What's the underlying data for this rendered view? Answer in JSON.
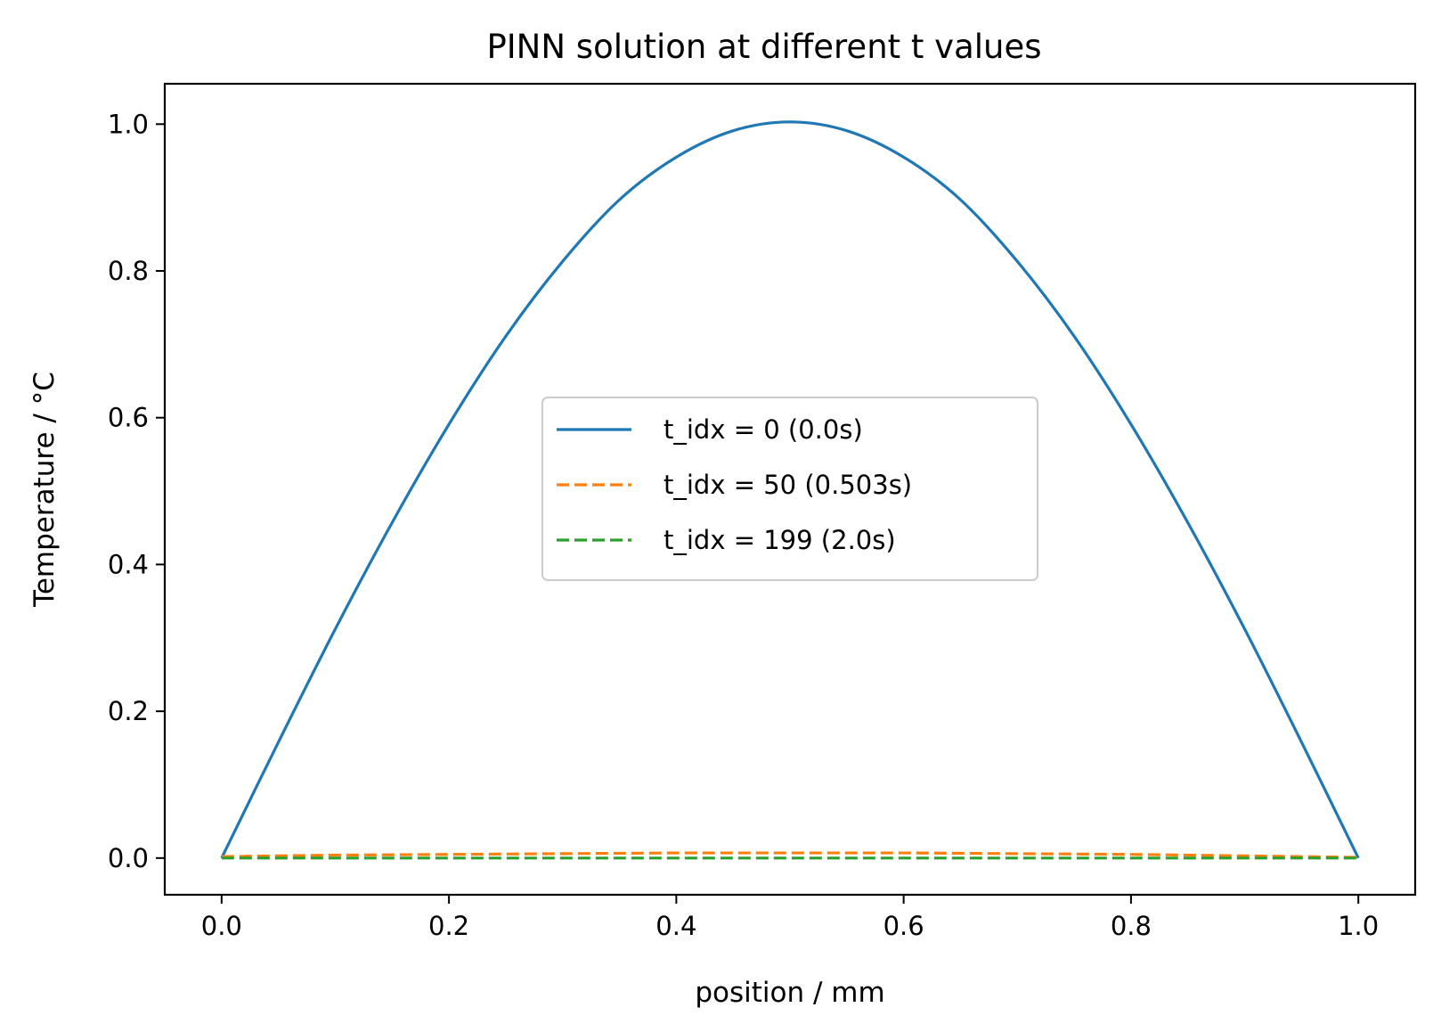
{
  "chart_data": {
    "type": "line",
    "title": "PINN solution at different t values",
    "xlabel": "position / mm",
    "ylabel": "Temperature / °C",
    "xlim": [
      -0.05,
      1.05
    ],
    "ylim": [
      -0.05,
      1.055
    ],
    "xticks": [
      0.0,
      0.2,
      0.4,
      0.6,
      0.8,
      1.0
    ],
    "xtick_labels": [
      "0.0",
      "0.2",
      "0.4",
      "0.6",
      "0.8",
      "1.0"
    ],
    "yticks": [
      0.0,
      0.2,
      0.4,
      0.6,
      0.8,
      1.0
    ],
    "ytick_labels": [
      "0.0",
      "0.2",
      "0.4",
      "0.6",
      "0.8",
      "1.0"
    ],
    "grid": false,
    "legend_position": "center",
    "series": [
      {
        "name": "t_idx = 0 (0.0s)",
        "color": "#1f77b4",
        "dash": "solid",
        "x": [
          0.0,
          0.05,
          0.1,
          0.15,
          0.2,
          0.25,
          0.3,
          0.35,
          0.4,
          0.45,
          0.5,
          0.55,
          0.6,
          0.65,
          0.7,
          0.75,
          0.8,
          0.85,
          0.9,
          0.95,
          1.0
        ],
        "y": [
          0.0,
          0.158,
          0.312,
          0.457,
          0.591,
          0.711,
          0.813,
          0.897,
          0.955,
          0.991,
          1.003,
          0.991,
          0.955,
          0.897,
          0.813,
          0.711,
          0.591,
          0.457,
          0.312,
          0.158,
          0.0
        ]
      },
      {
        "name": "t_idx = 50 (0.503s)",
        "color": "#ff7f0e",
        "dash": "dashed",
        "x": [
          0.0,
          0.1,
          0.2,
          0.3,
          0.4,
          0.5,
          0.6,
          0.7,
          0.8,
          0.9,
          1.0
        ],
        "y": [
          0.002,
          0.004,
          0.005,
          0.006,
          0.007,
          0.007,
          0.007,
          0.006,
          0.005,
          0.003,
          0.001
        ]
      },
      {
        "name": "t_idx = 199 (2.0s)",
        "color": "#2ca02c",
        "dash": "dashed",
        "x": [
          0.0,
          0.1,
          0.2,
          0.3,
          0.4,
          0.5,
          0.6,
          0.7,
          0.8,
          0.9,
          1.0
        ],
        "y": [
          0.0,
          0.0,
          0.0,
          0.0,
          0.0,
          0.0,
          0.0,
          0.0,
          0.0,
          0.0,
          0.0
        ]
      }
    ]
  }
}
